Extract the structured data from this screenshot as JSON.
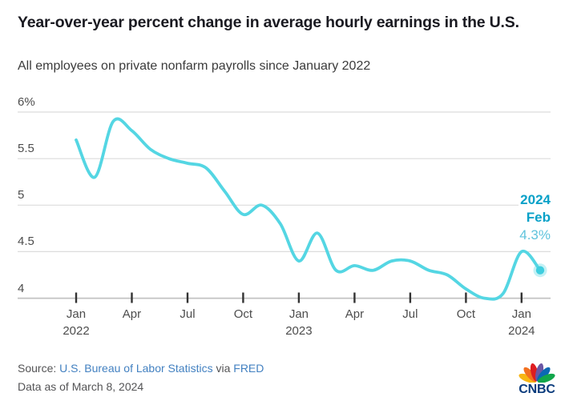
{
  "header": {
    "title": "Year-over-year percent change in average hourly earnings in the U.S.",
    "subtitle": "All employees on private nonfarm payrolls since January 2022"
  },
  "chart_data": {
    "type": "line",
    "title": "Year-over-year percent change in average hourly earnings in the U.S.",
    "subtitle": "All employees on private nonfarm payrolls since January 2022",
    "unit": "percent",
    "grid": true,
    "line_color": "#54d6e3",
    "dot_color": "#3fcedf",
    "x": [
      "Jan 2022",
      "Feb 2022",
      "Mar 2022",
      "Apr 2022",
      "May 2022",
      "Jun 2022",
      "Jul 2022",
      "Aug 2022",
      "Sep 2022",
      "Oct 2022",
      "Nov 2022",
      "Dec 2022",
      "Jan 2023",
      "Feb 2023",
      "Mar 2023",
      "Apr 2023",
      "May 2023",
      "Jun 2023",
      "Jul 2023",
      "Aug 2023",
      "Sep 2023",
      "Oct 2023",
      "Nov 2023",
      "Dec 2023",
      "Jan 2024",
      "Feb 2024"
    ],
    "values": [
      5.7,
      5.3,
      5.9,
      5.8,
      5.6,
      5.5,
      5.45,
      5.4,
      5.15,
      4.9,
      5.0,
      4.8,
      4.4,
      4.7,
      4.3,
      4.35,
      4.3,
      4.4,
      4.4,
      4.3,
      4.25,
      4.1,
      4.0,
      4.05,
      4.5,
      4.3
    ],
    "ylim": [
      4.0,
      6.1
    ],
    "yticks": [
      {
        "label": "6%",
        "value": 6
      },
      {
        "label": "5.5",
        "value": 5.5
      },
      {
        "label": "5",
        "value": 5
      },
      {
        "label": "4.5",
        "value": 4.5
      },
      {
        "label": "4",
        "value": 4
      }
    ],
    "xticks": [
      {
        "label": "Jan",
        "year": "2022",
        "index": 0
      },
      {
        "label": "Apr",
        "index": 3
      },
      {
        "label": "Jul",
        "index": 6
      },
      {
        "label": "Oct",
        "index": 9
      },
      {
        "label": "Jan",
        "year": "2023",
        "index": 12
      },
      {
        "label": "Apr",
        "index": 15
      },
      {
        "label": "Jul",
        "index": 18
      },
      {
        "label": "Oct",
        "index": 21
      },
      {
        "label": "Jan",
        "year": "2024",
        "index": 24
      }
    ],
    "annotation": {
      "year": "2024",
      "month": "Feb",
      "value": "4.3%"
    },
    "legend": "none"
  },
  "annotation": {
    "year": "2024",
    "month": "Feb",
    "value": "4.3%"
  },
  "footer": {
    "source_prefix": "Source:",
    "source_link1": "U.S. Bureau of Labor Statistics",
    "source_via": "via",
    "source_link2": "FRED",
    "data_as_of": "Data as of March 8, 2024",
    "logo_text": "CNBC"
  },
  "colors": {
    "line": "#54d6e3",
    "annotation_strong": "#09a1c8",
    "annotation_value": "#5fc3dc",
    "gridline": "#dcdcdc",
    "axis_line": "#c2c2c2",
    "axis_text": "#4d4d4d",
    "link": "#4381c1",
    "title_text": "#1a1a21",
    "peacock": [
      "#f7b512",
      "#f3701f",
      "#dd1d21",
      "#6b57a5",
      "#0b69b4",
      "#12a64b"
    ]
  }
}
